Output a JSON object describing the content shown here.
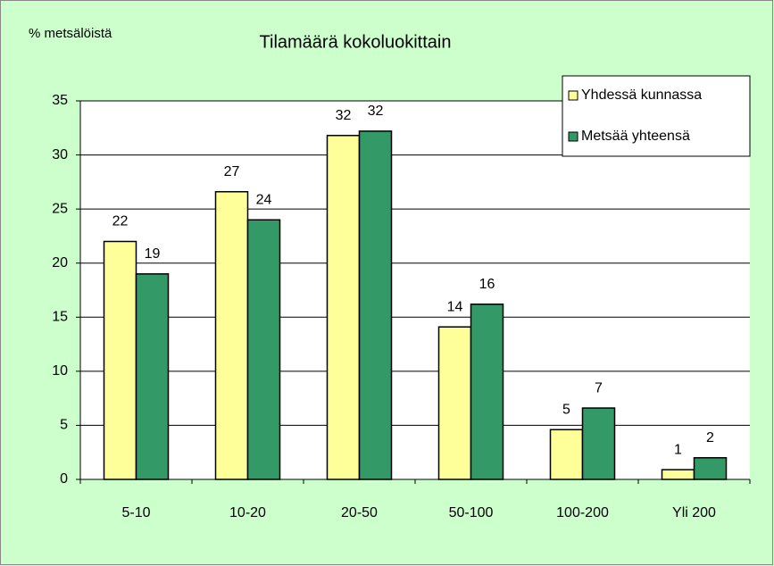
{
  "chart_data": {
    "type": "bar",
    "title": "Tilamäärä kokoluokittain",
    "y_label": "% metsälöistä",
    "categories": [
      "5-10",
      "10-20",
      "20-50",
      "50-100",
      "100-200",
      "Yli 200"
    ],
    "series": [
      {
        "name": "Yhdessä kunnassa",
        "color": "#ffff99",
        "values": [
          22,
          26.6,
          31.8,
          14.1,
          4.6,
          0.9
        ],
        "value_labels": [
          "22",
          "27",
          "32",
          "14",
          "5",
          "1"
        ]
      },
      {
        "name": "Metsää yhteensä",
        "color": "#339966",
        "values": [
          19,
          24,
          32.2,
          16.2,
          6.6,
          2.0
        ],
        "value_labels": [
          "19",
          "24",
          "32",
          "16",
          "7",
          "2"
        ]
      }
    ],
    "ylim": [
      0,
      35
    ],
    "yticks": [
      0,
      5,
      10,
      15,
      20,
      25,
      30,
      35
    ],
    "grid": true,
    "legend": "upper right"
  }
}
